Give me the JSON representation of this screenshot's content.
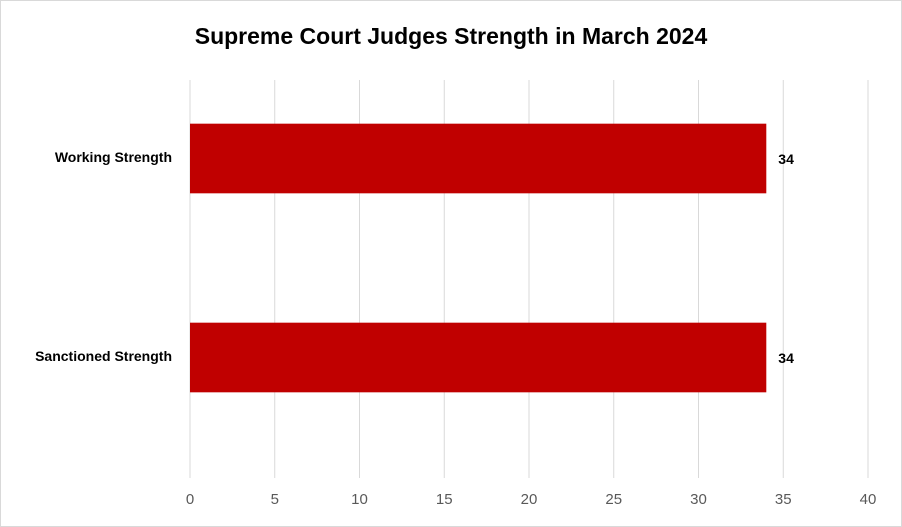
{
  "chart_data": {
    "type": "bar",
    "orientation": "horizontal",
    "title": "Supreme Court Judges Strength in March 2024",
    "categories": [
      "Working Strength",
      "Sanctioned Strength"
    ],
    "values": [
      34,
      34
    ],
    "color": "#c00000",
    "xlim": [
      0,
      40
    ],
    "xticks": [
      0,
      5,
      10,
      15,
      20,
      25,
      30,
      35,
      40
    ],
    "grid": true
  }
}
